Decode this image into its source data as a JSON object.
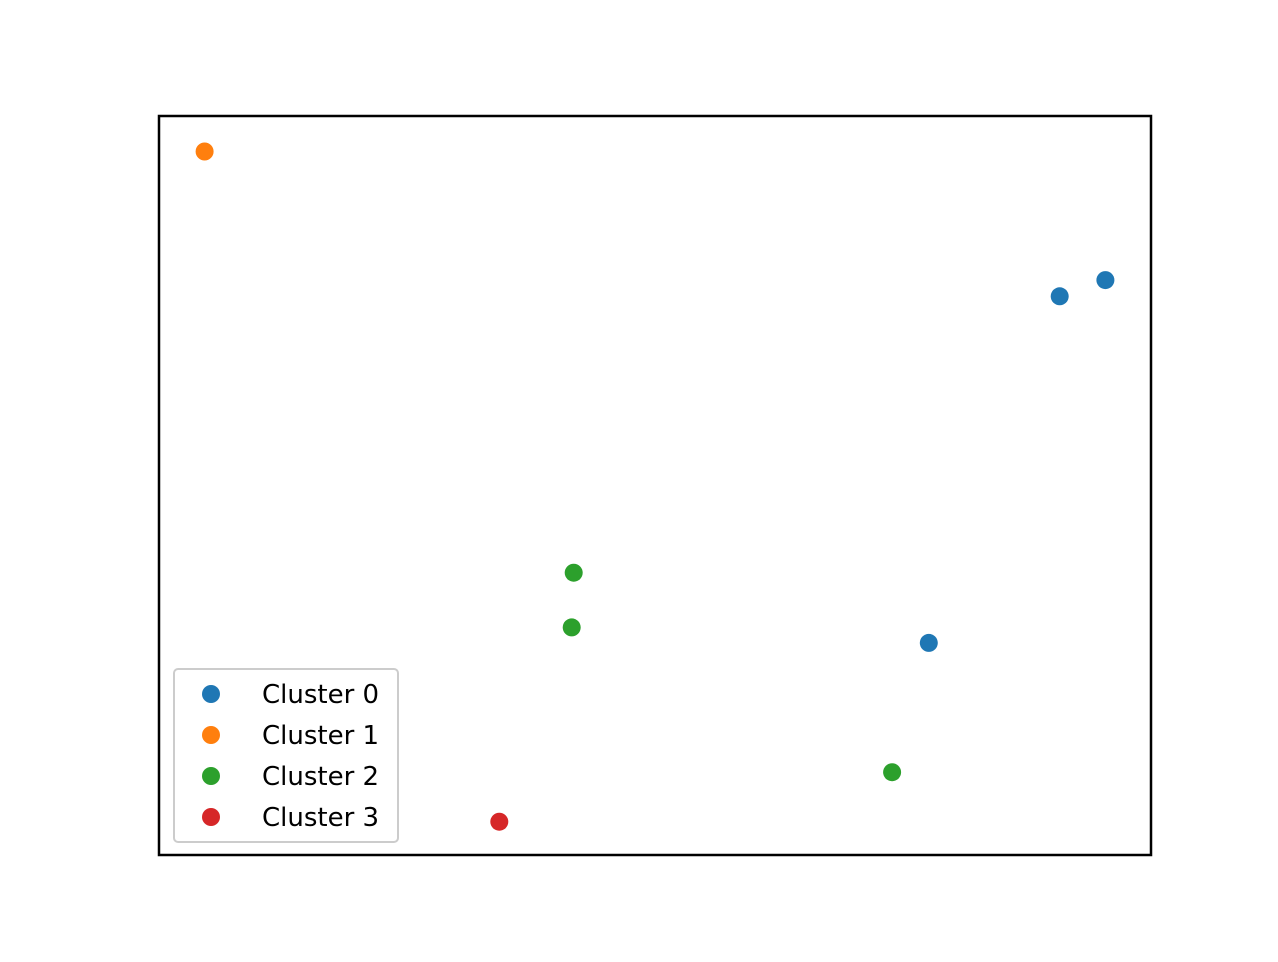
{
  "chart_data": {
    "type": "scatter",
    "title": "",
    "xlabel": "",
    "ylabel": "",
    "axis_ticks_visible": false,
    "grid": false,
    "legend_position": "lower-left",
    "xlim": [
      0,
      100
    ],
    "ylim": [
      0,
      100
    ],
    "series": [
      {
        "name": "Cluster 0",
        "color": "#1f77b4",
        "points": [
          {
            "x": 90.8,
            "y": 75.6
          },
          {
            "x": 95.4,
            "y": 77.8
          },
          {
            "x": 77.6,
            "y": 28.7
          }
        ]
      },
      {
        "name": "Cluster 1",
        "color": "#ff7f0e",
        "points": [
          {
            "x": 4.6,
            "y": 95.2
          }
        ]
      },
      {
        "name": "Cluster 2",
        "color": "#2ca02c",
        "points": [
          {
            "x": 41.8,
            "y": 38.2
          },
          {
            "x": 41.6,
            "y": 30.8
          },
          {
            "x": 73.9,
            "y": 11.2
          }
        ]
      },
      {
        "name": "Cluster 3",
        "color": "#d62728",
        "points": [
          {
            "x": 34.3,
            "y": 4.5
          }
        ]
      }
    ]
  }
}
